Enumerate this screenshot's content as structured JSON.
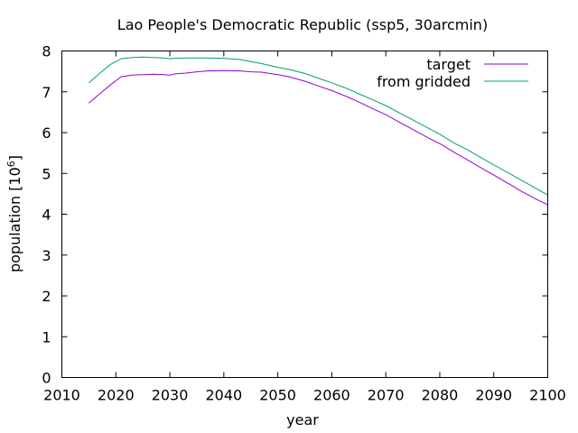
{
  "chart_data": {
    "type": "line",
    "title": "Lao People's Democratic Republic (ssp5, 30arcmin)",
    "xlabel": "year",
    "ylabel_main": "population [10",
    "ylabel_exp": "6",
    "ylabel_close": "]",
    "xlim": [
      2010,
      2100
    ],
    "ylim": [
      0,
      8
    ],
    "x_ticks": [
      2010,
      2020,
      2030,
      2040,
      2050,
      2060,
      2070,
      2080,
      2090,
      2100
    ],
    "y_ticks": [
      0,
      1,
      2,
      3,
      4,
      5,
      6,
      7,
      8
    ],
    "legend_position": "top-right",
    "series": [
      {
        "name": "target",
        "color": "#9400d3",
        "x": [
          2015,
          2017,
          2019,
          2021,
          2023,
          2025,
          2027,
          2029,
          2030,
          2031,
          2033,
          2035,
          2037,
          2040,
          2043,
          2045,
          2047,
          2050,
          2052,
          2055,
          2058,
          2060,
          2063,
          2065,
          2068,
          2070,
          2073,
          2075,
          2078,
          2080,
          2083,
          2085,
          2088,
          2090,
          2093,
          2095,
          2098,
          2100
        ],
        "values": [
          6.72,
          6.95,
          7.17,
          7.37,
          7.41,
          7.42,
          7.43,
          7.42,
          7.41,
          7.44,
          7.46,
          7.49,
          7.51,
          7.52,
          7.51,
          7.49,
          7.48,
          7.42,
          7.37,
          7.26,
          7.12,
          7.03,
          6.87,
          6.75,
          6.56,
          6.44,
          6.22,
          6.08,
          5.86,
          5.73,
          5.49,
          5.34,
          5.11,
          4.96,
          4.73,
          4.57,
          4.36,
          4.23
        ]
      },
      {
        "name": "from gridded",
        "color": "#009e73",
        "x": [
          2015,
          2017,
          2019,
          2021,
          2023,
          2025,
          2027,
          2029,
          2030,
          2031,
          2033,
          2035,
          2037,
          2040,
          2043,
          2045,
          2047,
          2050,
          2052,
          2055,
          2058,
          2060,
          2063,
          2065,
          2068,
          2070,
          2073,
          2075,
          2078,
          2080,
          2083,
          2085,
          2088,
          2090,
          2093,
          2095,
          2098,
          2100
        ],
        "values": [
          7.22,
          7.45,
          7.67,
          7.81,
          7.84,
          7.85,
          7.84,
          7.83,
          7.81,
          7.82,
          7.83,
          7.83,
          7.83,
          7.82,
          7.79,
          7.74,
          7.69,
          7.6,
          7.55,
          7.45,
          7.31,
          7.22,
          7.07,
          6.95,
          6.78,
          6.66,
          6.45,
          6.31,
          6.1,
          5.96,
          5.72,
          5.59,
          5.36,
          5.21,
          4.99,
          4.84,
          4.62,
          4.47
        ]
      }
    ]
  }
}
